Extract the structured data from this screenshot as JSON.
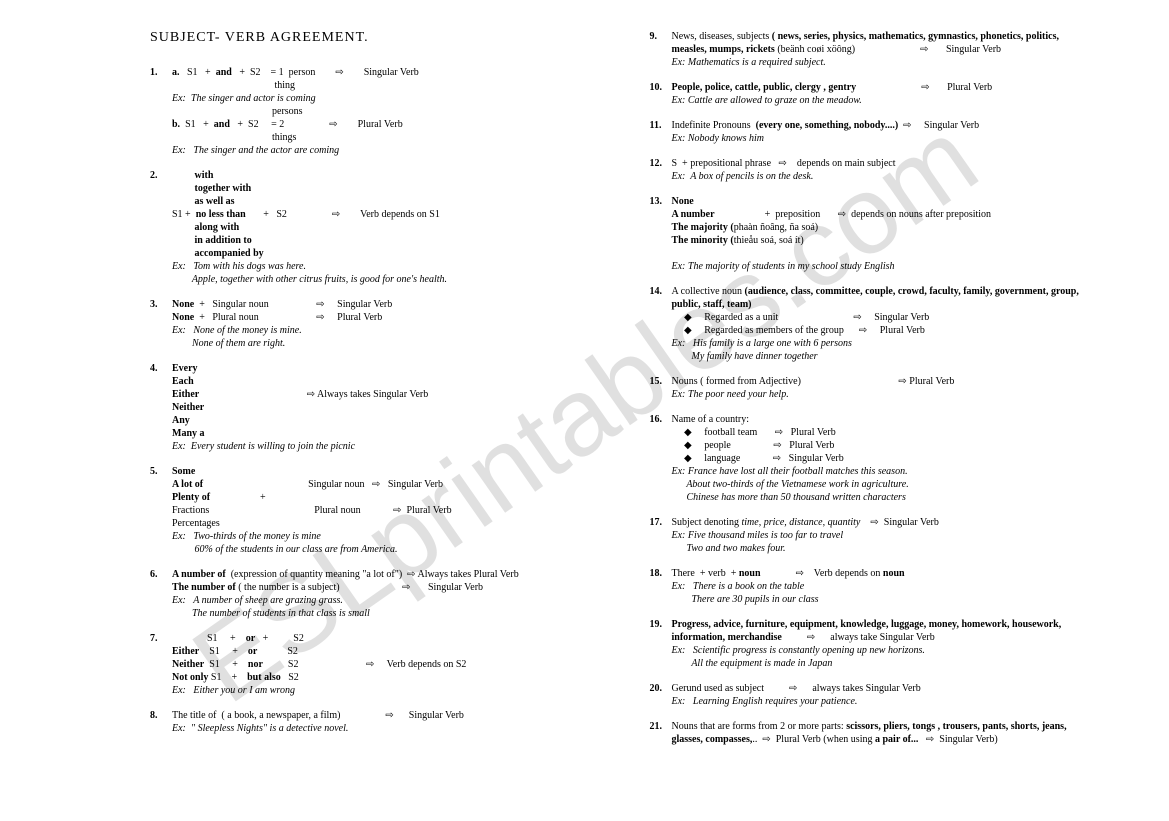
{
  "title": "SUBJECT- VERB AGREEMENT.",
  "arrow": "⇨",
  "watermark": "ESLprintables.com",
  "rules_left": [
    {
      "n": "1.",
      "lines": [
        "<b>a.</b>   S1   +  <b>and</b>   +  S2    = 1  person        ⇨        Singular Verb",
        "                                         thing",
        "<i>Ex:  The singer and actor is coming</i>",
        "                                        persons",
        "<b>b.</b>  S1   +  <b>and</b>   +  S2     = 2                  ⇨        Plural Verb",
        "                                        things",
        "<i>Ex:   The singer and the actor are coming</i>"
      ]
    },
    {
      "n": "2.",
      "lines": [
        "         <b>with</b>",
        "         <b>together with</b>",
        "         <b>as well as</b>",
        "S1 +  <b>no less than</b>       +   S2                  ⇨        Verb depends on S1",
        "         <b>along with</b>",
        "         <b>in addition to</b>",
        "         <b>accompanied by</b>",
        "<i>Ex:   Tom with his dogs was here.</i>",
        "<i>        Apple, together with other citrus fruits, is good for one's health.</i>"
      ]
    },
    {
      "n": "3.",
      "lines": [
        "<b>None</b>  +   Singular noun                   ⇨     Singular Verb",
        "<b>None</b>  +   Plural noun                       ⇨     Plural Verb",
        "<i>Ex:   None of the money is mine.</i>",
        "<i>        None of them are right.</i>"
      ]
    },
    {
      "n": "4.",
      "lines": [
        "<b>Every</b>",
        "<b>Each</b>",
        "<b>Either</b>                                           ⇨ Always takes Singular Verb",
        "<b>Neither</b>",
        "<b>Any</b>",
        "<b>Many a</b>",
        "<i>Ex:  Every student is willing to join the picnic</i>"
      ]
    },
    {
      "n": "5.",
      "lines": [
        "<b>Some</b>",
        "<b>A lot of</b>                                          Singular noun   ⇨   Singular Verb",
        "<b>Plenty of</b>                    +",
        "Fractions                                          Plural noun             ⇨  Plural Verb",
        "Percentages",
        "<i>Ex:   Two-thirds of the money is mine</i>",
        "<i>         60% of the students in our class are from America.</i>"
      ]
    },
    {
      "n": "6.",
      "lines": [
        "<b>A number of</b>  (expression of quantity meaning \"a lot of\")  ⇨ Always takes Plural Verb",
        "<b>The number of</b> ( the number is a subject)                         ⇨       Singular Verb",
        "<i>Ex:   A number of sheep are grazing grass.</i>",
        "<i>        The number of students in that class is small</i>"
      ]
    },
    {
      "n": "7.",
      "lines": [
        "              S1     +    <b>or</b>   +          S2",
        "<b>Either</b>    S1     +    <b>or</b>            S2",
        "<b>Neither</b>  S1     +    <b>nor</b>          S2                           ⇨     Verb depends on S2",
        "<b>Not only</b> S1    +    <b>but also</b>   S2",
        "<i>Ex:   Either you or I am wrong</i>"
      ]
    },
    {
      "n": "8.",
      "lines": [
        "The title of  ( a book, a newspaper, a film)                  ⇨      Singular Verb",
        "<i>Ex:  \" Sleepless Nights\" is a detective novel.</i>"
      ]
    }
  ],
  "rules_right": [
    {
      "n": "9.",
      "lines": [
        "News, diseases, subjects <b>( news, series, physics, mathematics, gymnastics, phonetics, politics,</b>",
        "<b>measles, mumps, rickets</b> (beänh coøi xöông)                          ⇨       Singular Verb",
        "<i>Ex: Mathematics is a required subject.</i>"
      ]
    },
    {
      "n": "10.",
      "lines": [
        "<b>People, police, cattle, public, clergy , gentry</b>                          ⇨       Plural Verb",
        "<i>Ex: Cattle are allowed to graze on the meadow.</i>"
      ]
    },
    {
      "n": "11.",
      "lines": [
        "Indefinite Pronouns  <b>(every one, something, nobody....)</b>  ⇨     Singular Verb",
        "<i>Ex: Nobody knows him</i>"
      ]
    },
    {
      "n": "12.",
      "lines": [
        "S  + prepositional phrase   ⇨    depends on main subject",
        "<i>Ex:  A box of pencils is on the desk.</i>"
      ]
    },
    {
      "n": "13.",
      "lines": [
        "<b>None</b>",
        "<b>A number</b>                    +  preposition       ⇨  depends on nouns after preposition",
        "<b>The majority (</b>phaàn ñoâng, ña soá)",
        "<b>The minority (</b>thieåu soá, soá ít)",
        "",
        "<i>Ex: The majority of students in my school study English</i>"
      ]
    },
    {
      "n": "14.",
      "lines": [
        "A collective noun <b>(audience, class, committee, couple, crowd, faculty, family, government, group,</b>",
        "<b>public, staff, team)</b>",
        "     ◆     Regarded as a unit                              ⇨     Singular Verb",
        "     ◆     Regarded as members of the group      ⇨     Plural Verb",
        "<i>Ex:   His family is a large one with 6 persons</i>",
        "<i>        My family have dinner together</i>"
      ]
    },
    {
      "n": "15.",
      "lines": [
        "Nouns ( formed from Adjective)                                       ⇨ Plural Verb",
        "<i>Ex: The poor need your help.</i>"
      ]
    },
    {
      "n": "16.",
      "lines": [
        "Name of a country:",
        "     ◆     football team       ⇨   Plural Verb",
        "     ◆     people                 ⇨   Plural Verb",
        "     ◆     language             ⇨   Singular Verb",
        "<i>Ex: France have lost all their football matches this season.</i>",
        "<i>      About two-thirds of the Vietnamese work in agriculture.</i>",
        "<i>      Chinese has more than 50 thousand written characters</i>"
      ]
    },
    {
      "n": "17.",
      "lines": [
        "Subject denoting <i>time, price, distance, quantity</i>    ⇨  Singular Verb",
        "<i>Ex: Five thousand miles is too far to travel</i>",
        "<i>      Two and two makes four.</i>"
      ]
    },
    {
      "n": "18.",
      "lines": [
        "There  + verb  + <b>noun</b>              ⇨    Verb depends on <b>noun</b>",
        "<i>Ex:   There is a book on the table</i>",
        "<i>        There are 30 pupils in our class</i>"
      ]
    },
    {
      "n": "19.",
      "lines": [
        "<b>Progress, advice, furniture, equipment, knowledge, luggage, money, homework, housework,</b>",
        "<b>information, merchandise</b>          ⇨      always take Singular Verb",
        "<i>Ex:   Scientific progress is constantly opening up new horizons.</i>",
        "<i>        All the equipment is made in Japan</i>"
      ]
    },
    {
      "n": "20.",
      "lines": [
        "Gerund used as subject          ⇨      always takes Singular Verb",
        "<i>Ex:   Learning English requires your patience.</i>"
      ]
    },
    {
      "n": "21.",
      "lines": [
        "Nouns that are forms from 2 or more parts: <b>scissors, pliers, tongs , trousers, pants, shorts, jeans,</b>",
        "<b>glasses, compasses,</b>..  ⇨  Plural Verb (when using <b>a pair of...</b>   ⇨  Singular Verb)"
      ]
    }
  ]
}
